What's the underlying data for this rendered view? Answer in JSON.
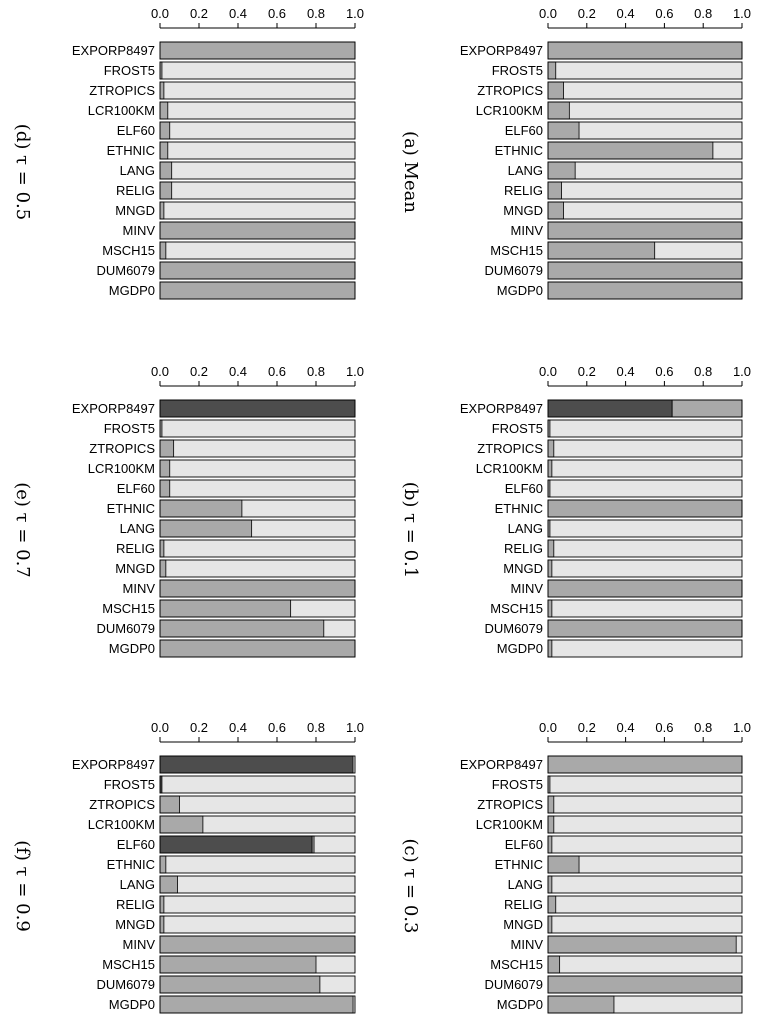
{
  "chart_data": [
    {
      "type": "bar",
      "orientation": "horizontal",
      "stacked": true,
      "title": "(a) Mean",
      "categories": [
        "EXPORP8497",
        "FROST5",
        "ZTROPICS",
        "LCR100KM",
        "ELF60",
        "ETHNIC",
        "LANG",
        "RELIG",
        "MNGD",
        "MINV",
        "MSCH15",
        "DUM6079",
        "MGDP0"
      ],
      "xlim": [
        0,
        1
      ],
      "xticks": [
        "0.0",
        "0.2",
        "0.4",
        "0.6",
        "0.8",
        "1.0"
      ],
      "dark_values": [
        0,
        0,
        0,
        0,
        0,
        0,
        0,
        0,
        0,
        0,
        0,
        0,
        0
      ],
      "medium_values": [
        1.0,
        0.04,
        0.08,
        0.11,
        0.16,
        0.85,
        0.14,
        0.07,
        0.08,
        1.0,
        0.55,
        1.0,
        1.0
      ]
    },
    {
      "type": "bar",
      "orientation": "horizontal",
      "stacked": true,
      "title": "(b) τ = 0.1",
      "categories": [
        "EXPORP8497",
        "FROST5",
        "ZTROPICS",
        "LCR100KM",
        "ELF60",
        "ETHNIC",
        "LANG",
        "RELIG",
        "MNGD",
        "MINV",
        "MSCH15",
        "DUM6079",
        "MGDP0"
      ],
      "xlim": [
        0,
        1
      ],
      "xticks": [
        "0.0",
        "0.2",
        "0.4",
        "0.6",
        "0.8",
        "1.0"
      ],
      "dark_values": [
        0.64,
        0,
        0,
        0,
        0,
        0,
        0,
        0,
        0,
        0,
        0,
        0,
        0
      ],
      "medium_values": [
        0.36,
        0.01,
        0.03,
        0.02,
        0.01,
        1.0,
        0.01,
        0.03,
        0.02,
        1.0,
        0.02,
        1.0,
        0.02
      ]
    },
    {
      "type": "bar",
      "orientation": "horizontal",
      "stacked": true,
      "title": "(c) τ = 0.3",
      "categories": [
        "EXPORP8497",
        "FROST5",
        "ZTROPICS",
        "LCR100KM",
        "ELF60",
        "ETHNIC",
        "LANG",
        "RELIG",
        "MNGD",
        "MINV",
        "MSCH15",
        "DUM6079",
        "MGDP0"
      ],
      "xlim": [
        0,
        1
      ],
      "xticks": [
        "0.0",
        "0.2",
        "0.4",
        "0.6",
        "0.8",
        "1.0"
      ],
      "dark_values": [
        0,
        0,
        0,
        0,
        0,
        0,
        0,
        0,
        0,
        0,
        0,
        0,
        0
      ],
      "medium_values": [
        1.0,
        0.01,
        0.03,
        0.03,
        0.02,
        0.16,
        0.02,
        0.04,
        0.02,
        0.97,
        0.06,
        1.0,
        0.34
      ]
    },
    {
      "type": "bar",
      "orientation": "horizontal",
      "stacked": true,
      "title": "(d) τ = 0.5",
      "categories": [
        "EXPORP8497",
        "FROST5",
        "ZTROPICS",
        "LCR100KM",
        "ELF60",
        "ETHNIC",
        "LANG",
        "RELIG",
        "MNGD",
        "MINV",
        "MSCH15",
        "DUM6079",
        "MGDP0"
      ],
      "xlim": [
        0,
        1
      ],
      "xticks": [
        "0.0",
        "0.2",
        "0.4",
        "0.6",
        "0.8",
        "1.0"
      ],
      "dark_values": [
        0,
        0,
        0,
        0,
        0,
        0,
        0,
        0,
        0,
        0,
        0,
        0,
        0
      ],
      "medium_values": [
        1.0,
        0.01,
        0.02,
        0.04,
        0.05,
        0.04,
        0.06,
        0.06,
        0.02,
        1.0,
        0.03,
        1.0,
        1.0
      ]
    },
    {
      "type": "bar",
      "orientation": "horizontal",
      "stacked": true,
      "title": "(e) τ = 0.7",
      "categories": [
        "EXPORP8497",
        "FROST5",
        "ZTROPICS",
        "LCR100KM",
        "ELF60",
        "ETHNIC",
        "LANG",
        "RELIG",
        "MNGD",
        "MINV",
        "MSCH15",
        "DUM6079",
        "MGDP0"
      ],
      "xlim": [
        0,
        1
      ],
      "xticks": [
        "0.0",
        "0.2",
        "0.4",
        "0.6",
        "0.8",
        "1.0"
      ],
      "dark_values": [
        1.0,
        0,
        0,
        0,
        0,
        0,
        0,
        0,
        0,
        0,
        0,
        0,
        0
      ],
      "medium_values": [
        0,
        0.01,
        0.07,
        0.05,
        0.05,
        0.42,
        0.47,
        0.02,
        0.03,
        1.0,
        0.67,
        0.84,
        1.0
      ]
    },
    {
      "type": "bar",
      "orientation": "horizontal",
      "stacked": true,
      "title": "(f) τ = 0.9",
      "categories": [
        "EXPORP8497",
        "FROST5",
        "ZTROPICS",
        "LCR100KM",
        "ELF60",
        "ETHNIC",
        "LANG",
        "RELIG",
        "MNGD",
        "MINV",
        "MSCH15",
        "DUM6079",
        "MGDP0"
      ],
      "xlim": [
        0,
        1
      ],
      "xticks": [
        "0.0",
        "0.2",
        "0.4",
        "0.6",
        "0.8",
        "1.0"
      ],
      "dark_values": [
        0.99,
        0.01,
        0,
        0,
        0.78,
        0,
        0,
        0,
        0,
        0,
        0,
        0,
        0
      ],
      "medium_values": [
        0,
        0,
        0.1,
        0.22,
        0.01,
        0.03,
        0.09,
        0.02,
        0.02,
        1.0,
        0.8,
        0.82,
        0.99
      ]
    }
  ],
  "colors": {
    "dark": "#4d4d4d",
    "medium": "#a9a9a9",
    "light": "#e6e6e6",
    "outline": "#000000"
  }
}
